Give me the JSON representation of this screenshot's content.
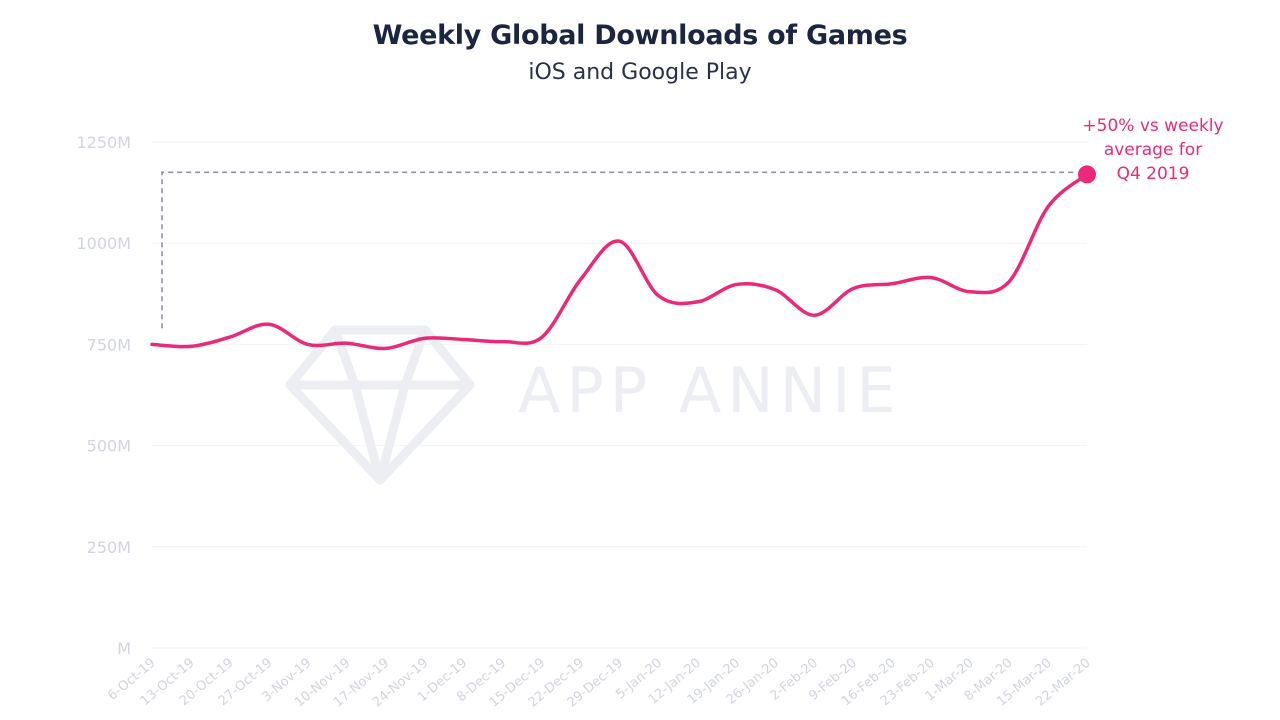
{
  "title": "Weekly Global Downloads of Games",
  "subtitle": "iOS and Google Play",
  "watermark": "APP ANNIE",
  "colors": {
    "line": "#ea2a79",
    "axis_text": "#d2d5de",
    "title": "#1b2540",
    "reference": "#8c92a8",
    "watermark": "#eceef3"
  },
  "annotation": {
    "lines": [
      "+50% vs weekly",
      "average for",
      "Q4 2019"
    ]
  },
  "chart_data": {
    "type": "line",
    "title": "Weekly Global Downloads of Games",
    "subtitle": "iOS and Google Play",
    "xlabel": "",
    "ylabel": "",
    "categories": [
      "6-Oct-19",
      "13-Oct-19",
      "20-Oct-19",
      "27-Oct-19",
      "3-Nov-19",
      "10-Nov-19",
      "17-Nov-19",
      "24-Nov-19",
      "1-Dec-19",
      "8-Dec-19",
      "15-Dec-19",
      "22-Dec-19",
      "29-Dec-19",
      "5-Jan-20",
      "12-Jan-20",
      "19-Jan-20",
      "26-Jan-20",
      "2-Feb-20",
      "9-Feb-20",
      "16-Feb-20",
      "23-Feb-20",
      "1-Mar-20",
      "8-Mar-20",
      "15-Mar-20",
      "22-Mar-20"
    ],
    "series": [
      {
        "values": [
          750,
          745,
          768,
          800,
          750,
          753,
          740,
          765,
          762,
          757,
          767,
          910,
          1005,
          870,
          855,
          898,
          885,
          822,
          888,
          900,
          915,
          880,
          905,
          1090,
          1170
        ]
      }
    ],
    "y_ticks": [
      "M",
      "250M",
      "500M",
      "750M",
      "1000M",
      "1250M"
    ],
    "y_tick_values": [
      0,
      250,
      500,
      750,
      1000,
      1250
    ],
    "ylim": [
      0,
      1250
    ],
    "grid": true,
    "reference_level": 1175
  }
}
